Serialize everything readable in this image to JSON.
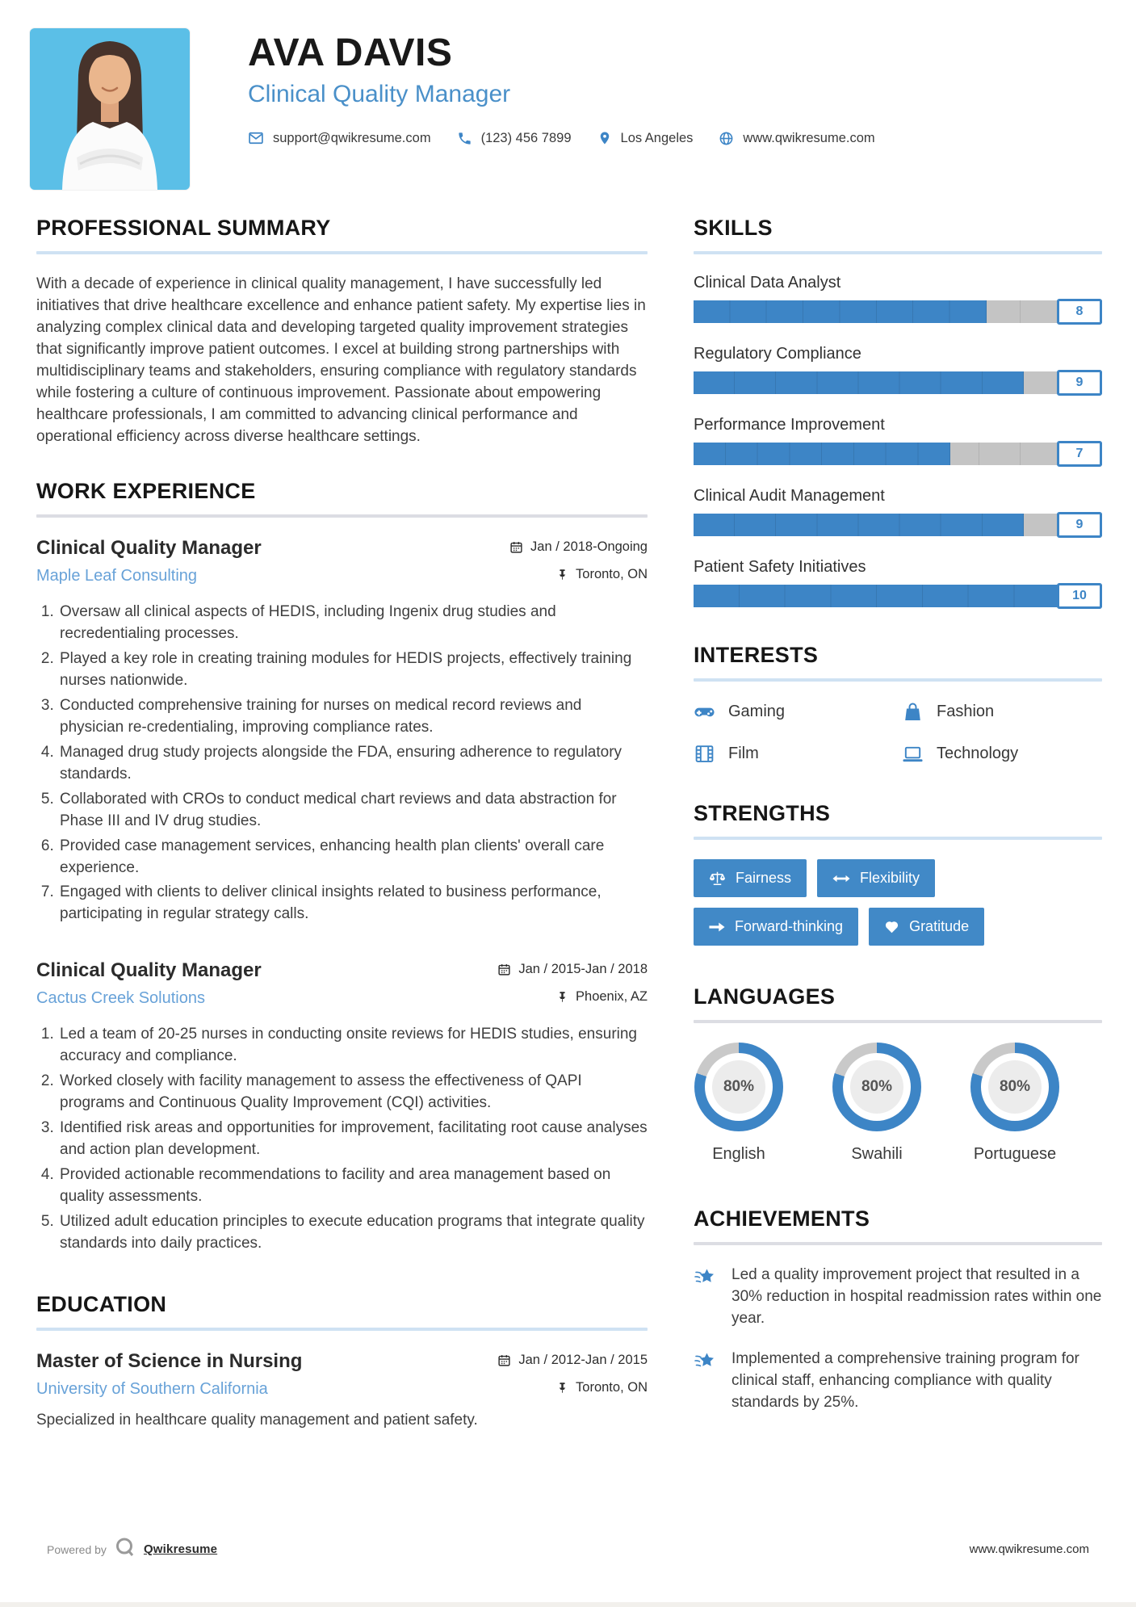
{
  "colors": {
    "accent": "#3d85c6",
    "accent_light": "#68a2d8",
    "title_blue": "#4a90c9",
    "button_blue": "#4189c7",
    "track_gray": "#c4c4c4"
  },
  "header": {
    "name": "AVA DAVIS",
    "title": "Clinical Quality Manager",
    "contact": {
      "email": "support@qwikresume.com",
      "phone": "(123) 456 7899",
      "location": "Los Angeles",
      "website": "www.qwikresume.com"
    }
  },
  "summary": {
    "heading": "PROFESSIONAL SUMMARY",
    "text": "With a decade of experience in clinical quality management, I have successfully led initiatives that drive healthcare excellence and enhance patient safety. My expertise lies in analyzing complex clinical data and developing targeted quality improvement strategies that significantly improve patient outcomes. I excel at building strong partnerships with multidisciplinary teams and stakeholders, ensuring compliance with regulatory standards while fostering a culture of continuous improvement. Passionate about empowering healthcare professionals, I am committed to advancing clinical performance and operational efficiency across diverse healthcare settings."
  },
  "work": {
    "heading": "WORK EXPERIENCE",
    "jobs": [
      {
        "title": "Clinical Quality Manager",
        "company": "Maple Leaf Consulting",
        "date": "Jan / 2018-Ongoing",
        "location": "Toronto, ON",
        "bullets": [
          "Oversaw all clinical aspects of HEDIS, including Ingenix drug studies and recredentialing processes.",
          "Played a key role in creating training modules for HEDIS projects, effectively training nurses nationwide.",
          "Conducted comprehensive training for nurses on medical record reviews and physician re-credentialing, improving compliance rates.",
          "Managed drug study projects alongside the FDA, ensuring adherence to regulatory standards.",
          "Collaborated with CROs to conduct medical chart reviews and data abstraction for Phase III and IV drug studies.",
          "Provided case management services, enhancing health plan clients' overall care experience.",
          "Engaged with clients to deliver clinical insights related to business performance, participating in regular strategy calls."
        ]
      },
      {
        "title": "Clinical Quality Manager",
        "company": "Cactus Creek Solutions",
        "date": "Jan / 2015-Jan / 2018",
        "location": "Phoenix, AZ",
        "bullets": [
          "Led a team of 20-25 nurses in conducting onsite reviews for HEDIS studies, ensuring accuracy and compliance.",
          "Worked closely with facility management to assess the effectiveness of QAPI programs and Continuous Quality Improvement (CQI) activities.",
          "Identified risk areas and opportunities for improvement, facilitating root cause analyses and action plan development.",
          "Provided actionable recommendations to facility and area management based on quality assessments.",
          "Utilized adult education principles to execute education programs that integrate quality standards into daily practices."
        ]
      }
    ]
  },
  "education": {
    "heading": "EDUCATION",
    "degree": "Master of Science in Nursing",
    "school": "University of Southern California",
    "date": "Jan / 2012-Jan / 2015",
    "location": "Toronto, ON",
    "description": "Specialized in healthcare quality management and patient safety."
  },
  "skills": {
    "heading": "SKILLS",
    "max": 10,
    "items": [
      {
        "name": "Clinical Data Analyst",
        "value": 8
      },
      {
        "name": "Regulatory Compliance",
        "value": 9
      },
      {
        "name": "Performance Improvement",
        "value": 7
      },
      {
        "name": "Clinical Audit Management",
        "value": 9
      },
      {
        "name": "Patient Safety Initiatives",
        "value": 10
      }
    ]
  },
  "interests": {
    "heading": "INTERESTS",
    "items": [
      {
        "icon": "gamepad-icon",
        "label": "Gaming"
      },
      {
        "icon": "shopping-bag-icon",
        "label": "Fashion"
      },
      {
        "icon": "film-icon",
        "label": "Film"
      },
      {
        "icon": "laptop-icon",
        "label": "Technology"
      }
    ]
  },
  "strengths": {
    "heading": "STRENGTHS",
    "items": [
      {
        "icon": "scales-icon",
        "label": "Fairness"
      },
      {
        "icon": "left-right-arrow-icon",
        "label": "Flexibility"
      },
      {
        "icon": "right-arrow-icon",
        "label": "Forward-thinking"
      },
      {
        "icon": "heart-icon",
        "label": "Gratitude"
      }
    ]
  },
  "languages": {
    "heading": "LANGUAGES",
    "items": [
      {
        "name": "English",
        "percent": 80,
        "percent_label": "80%"
      },
      {
        "name": "Swahili",
        "percent": 80,
        "percent_label": "80%"
      },
      {
        "name": "Portuguese",
        "percent": 80,
        "percent_label": "80%"
      }
    ]
  },
  "achievements": {
    "heading": "ACHIEVEMENTS",
    "items": [
      "Led a quality improvement project that resulted in a 30% reduction in hospital readmission rates within one year.",
      "Implemented a comprehensive training program for clinical staff, enhancing compliance with quality standards by 25%."
    ]
  },
  "footer": {
    "powered_by": "Powered by",
    "brand": "Qwikresume",
    "website": "www.qwikresume.com"
  },
  "chart_data": [
    {
      "type": "bar",
      "title": "SKILLS",
      "categories": [
        "Clinical Data Analyst",
        "Regulatory Compliance",
        "Performance Improvement",
        "Clinical Audit Management",
        "Patient Safety Initiatives"
      ],
      "values": [
        8,
        9,
        7,
        9,
        10
      ],
      "xlim": [
        0,
        10
      ]
    },
    {
      "type": "pie",
      "title": "LANGUAGES",
      "categories": [
        "English",
        "Swahili",
        "Portuguese"
      ],
      "values": [
        80,
        80,
        80
      ],
      "note": "three 80% donut progress rings"
    }
  ]
}
